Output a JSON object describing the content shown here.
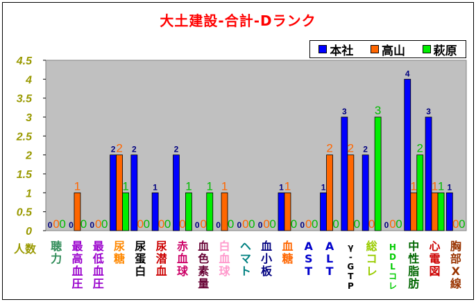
{
  "chart_data": {
    "type": "bar",
    "title": "大土建設-合計-Dランク",
    "ylabel": "人数",
    "ylim": [
      0,
      4.5
    ],
    "yticks": [
      "0",
      "0.5",
      "1",
      "1.5",
      "2",
      "2.5",
      "3",
      "3.5",
      "4",
      "4.5"
    ],
    "grid": false,
    "legend_position": "top-right",
    "categories": [
      {
        "label": "聴力",
        "color": "#2e8b57"
      },
      {
        "label": "最高血圧",
        "color": "#9900cc"
      },
      {
        "label": "最低血圧",
        "color": "#9900cc"
      },
      {
        "label": "尿糖",
        "color": "#ff8800"
      },
      {
        "label": "尿蛋白",
        "color": "#000000"
      },
      {
        "label": "尿潜血",
        "color": "#cc0000"
      },
      {
        "label": "赤血球",
        "color": "#cc0066"
      },
      {
        "label": "血色素量",
        "color": "#660033"
      },
      {
        "label": "白血球",
        "color": "#ff99cc"
      },
      {
        "label": "ヘマト",
        "color": "#008080"
      },
      {
        "label": "血小板",
        "color": "#000080"
      },
      {
        "label": "血糖",
        "color": "#ff6600"
      },
      {
        "label": "AST",
        "color": "#0000cc"
      },
      {
        "label": "ALT",
        "color": "#0000cc"
      },
      {
        "label": "γ-GTP",
        "color": "#000000"
      },
      {
        "label": "総コレ",
        "color": "#99cc00"
      },
      {
        "label": "HDLコレ",
        "color": "#00cc00"
      },
      {
        "label": "中性脂肪",
        "color": "#006600"
      },
      {
        "label": "心電図",
        "color": "#cc0000"
      },
      {
        "label": "胸部X線",
        "color": "#993300"
      }
    ],
    "series": [
      {
        "name": "本社",
        "color": "#0000ff",
        "label_color": "#000080",
        "values": [
          0,
          0,
          0,
          2,
          2,
          1,
          2,
          0,
          0,
          0,
          0,
          1,
          0,
          1,
          3,
          2,
          0,
          4,
          3,
          1
        ]
      },
      {
        "name": "高山",
        "color": "#ff6600",
        "label_color": "#ff6600",
        "values": [
          0,
          1,
          0,
          2,
          0,
          0,
          0,
          0,
          1,
          0,
          0,
          1,
          0,
          2,
          2,
          0,
          0,
          1,
          1,
          0
        ]
      },
      {
        "name": "萩原",
        "color": "#00ee00",
        "label_color": "#00bb00",
        "values": [
          0,
          0,
          0,
          1,
          0,
          0,
          1,
          1,
          0,
          0,
          0,
          0,
          0,
          0,
          0,
          3,
          0,
          2,
          1,
          0
        ]
      }
    ]
  },
  "colors": {
    "title": "#ff0000",
    "axis_text": "#999900",
    "plot_bg": "#c0c0c0",
    "grid": "#000000"
  }
}
